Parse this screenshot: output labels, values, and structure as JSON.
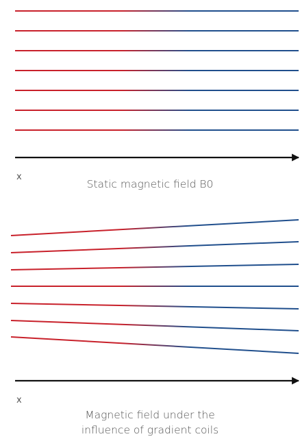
{
  "panels": [
    {
      "axis_label": "x",
      "caption_lines": [
        "Static magnetic field B0"
      ]
    },
    {
      "axis_label": "x",
      "caption_lines": [
        "Magnetic field under the",
        "influence of gradient coils"
      ]
    }
  ],
  "colors": {
    "field_left": "#c8202a",
    "field_right": "#1f4e8c",
    "axis": "#111111",
    "text": "#555555"
  }
}
